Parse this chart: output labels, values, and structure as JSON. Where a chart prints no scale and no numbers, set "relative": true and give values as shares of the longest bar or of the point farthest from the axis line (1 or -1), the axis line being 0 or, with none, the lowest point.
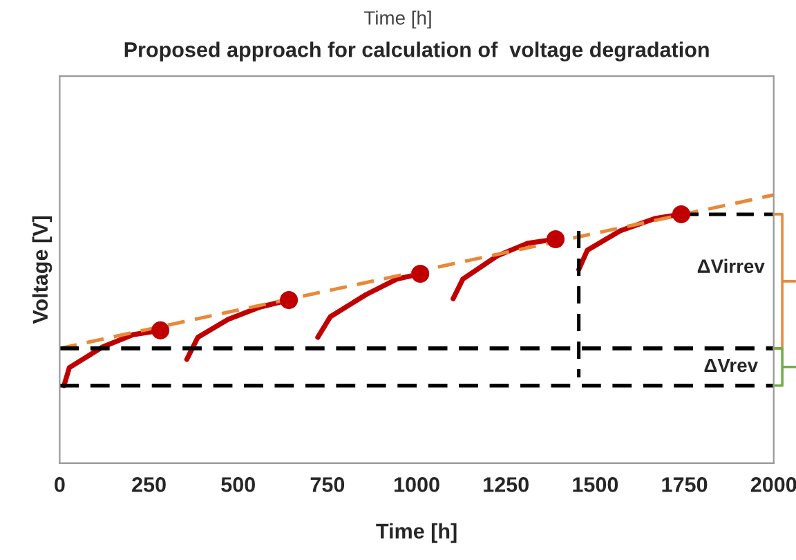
{
  "chart_data": {
    "type": "line",
    "title": "Proposed approach for calculation of  voltage degradation",
    "xlabel": "Time [h]",
    "ylabel": "Voltage [V]",
    "relative": true,
    "xlim": [
      0,
      2000
    ],
    "xticks": [
      0,
      250,
      500,
      750,
      1000,
      1250,
      1500,
      1750,
      2000
    ],
    "grid": false,
    "legend": false,
    "series": [
      {
        "color": "#c00000",
        "line_style": "solid",
        "x": [
          12,
          27,
          120,
          205,
          282
        ],
        "values": [
          0.289,
          0.356,
          0.433,
          0.479,
          0.495
        ]
      },
      {
        "color": "#c00000",
        "line_style": "solid",
        "x": [
          356,
          387,
          472,
          561,
          642
        ],
        "values": [
          0.387,
          0.469,
          0.536,
          0.582,
          0.608
        ]
      },
      {
        "color": "#c00000",
        "line_style": "solid",
        "x": [
          723,
          758,
          859,
          944,
          1010
        ],
        "values": [
          0.469,
          0.546,
          0.629,
          0.686,
          0.706
        ]
      },
      {
        "color": "#c00000",
        "line_style": "solid",
        "x": [
          1102,
          1129,
          1226,
          1311,
          1389
        ],
        "values": [
          0.613,
          0.686,
          0.773,
          0.82,
          0.835
        ]
      },
      {
        "color": "#c00000",
        "line_style": "solid",
        "x": [
          1454,
          1478,
          1570,
          1667,
          1741
        ],
        "values": [
          0.722,
          0.794,
          0.866,
          0.912,
          0.928
        ]
      },
      {
        "type": "scatter",
        "color": "#c00000",
        "marker": "circle",
        "x": [
          282,
          642,
          1010,
          1389,
          1741
        ],
        "values": [
          0.495,
          0.608,
          0.706,
          0.835,
          0.928
        ]
      },
      {
        "color": "#e8893a",
        "line_style": "dashed",
        "x": [
          0,
          2000
        ],
        "values": [
          0.428,
          1.0
        ]
      },
      {
        "color": "#000000",
        "line_style": "dashed",
        "x": [
          1741,
          2000
        ],
        "values": [
          0.928,
          0.928
        ]
      },
      {
        "color": "#000000",
        "line_style": "dashed",
        "x": [
          1454,
          1454
        ],
        "values": [
          0.866,
          0.32
        ]
      }
    ],
    "ref_lines": [
      {
        "axis": "y",
        "value": 0.428,
        "color": "#000000",
        "line_style": "dashed"
      },
      {
        "axis": "y",
        "value": 0.289,
        "color": "#000000",
        "line_style": "dashed"
      }
    ],
    "annotations": [
      "Time [h]",
      "ΔVirrev",
      "ΔVrev"
    ]
  }
}
